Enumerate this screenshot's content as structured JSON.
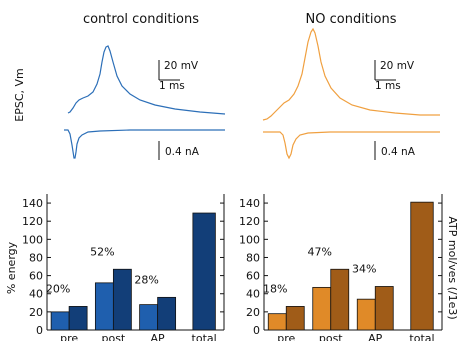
{
  "traces": {
    "y_label": "EPSC, Vm",
    "panels": [
      {
        "title": "control conditions",
        "color": "#2c6fb8",
        "voltage_scale": "20 mV",
        "time_scale": "1 ms",
        "current_scale": "0.4 nA"
      },
      {
        "title": "NO conditions",
        "color": "#f0a040",
        "voltage_scale": "20 mV",
        "time_scale": "1 ms",
        "current_scale": "0.4 nA"
      }
    ]
  },
  "chart_data": [
    {
      "type": "bar",
      "categories": [
        "pre",
        "post",
        "AP",
        "total"
      ],
      "series": [
        {
          "values": [
            20,
            52,
            28,
            129
          ],
          "color": "#1f5fae"
        },
        {
          "values": [
            26,
            67,
            36,
            null
          ],
          "color": "#123e78"
        }
      ],
      "percent_labels": [
        "20%",
        "52%",
        "28%"
      ],
      "ylabel": "% energy",
      "ylim": [
        0,
        150
      ],
      "yticks": [
        0,
        20,
        40,
        60,
        80,
        100,
        120,
        140
      ]
    },
    {
      "type": "bar",
      "categories": [
        "pre",
        "post",
        "AP",
        "total"
      ],
      "series": [
        {
          "values": [
            18,
            47,
            34,
            141
          ],
          "color": "#e08a28"
        },
        {
          "values": [
            26,
            67,
            48,
            null
          ],
          "color": "#a05c18"
        }
      ],
      "percent_labels": [
        "18%",
        "47%",
        "34%"
      ],
      "ylabel": "ATP mol/ves (/1e3)",
      "ylim": [
        0,
        150
      ],
      "yticks": [
        0,
        20,
        40,
        60,
        80,
        100,
        120,
        140
      ]
    }
  ]
}
